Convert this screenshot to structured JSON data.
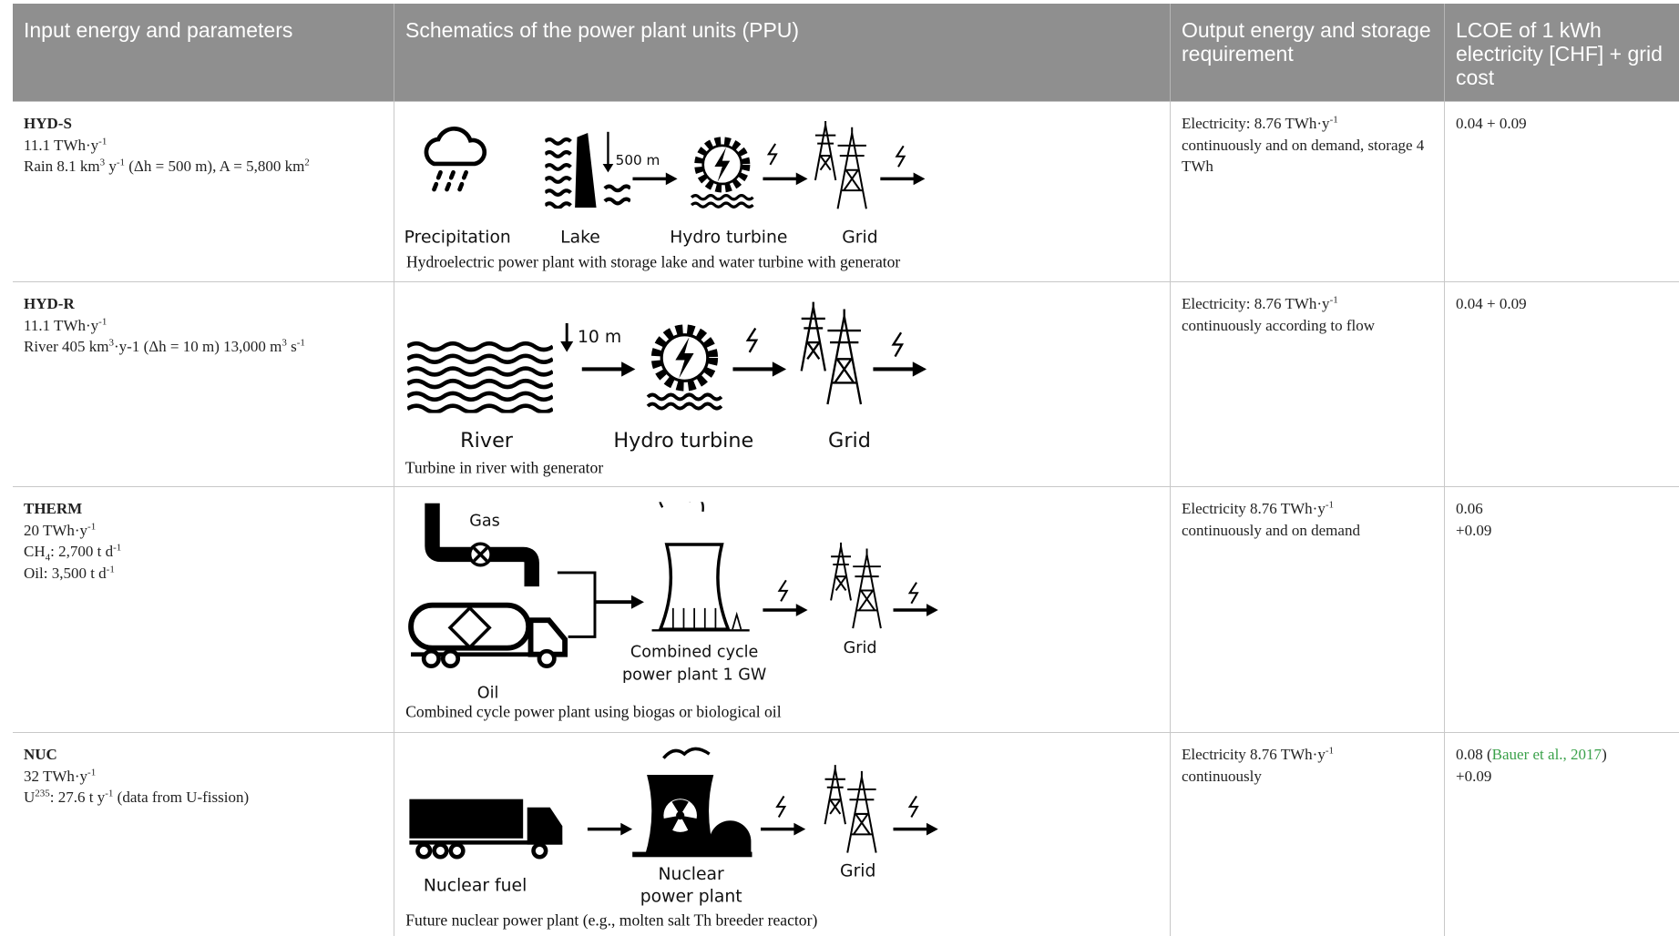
{
  "header": [
    "Input energy and parameters",
    "Schematics of the power plant units (PPU)",
    "Output energy and storage requirement",
    "LCOE of 1 kWh electricity [CHF] + grid cost"
  ],
  "rows": [
    {
      "name": "HYD-S",
      "input": [
        [
          {
            "t": "11.1 TWh·y"
          },
          {
            "sup": "-1"
          }
        ],
        [
          {
            "t": "Rain 8.1 km"
          },
          {
            "sup": "3"
          },
          {
            "t": " y"
          },
          {
            "sup": "-1"
          },
          {
            "t": " (Δh = 500 m), A = 5,800 km"
          },
          {
            "sup": "2"
          }
        ]
      ],
      "schematic": {
        "labels": [
          "Precipitation",
          "Lake",
          "Hydro turbine",
          "Grid"
        ],
        "drop": "500 m",
        "caption": "Hydroelectric power plant with storage lake and water turbine with generator"
      },
      "output": [
        [
          {
            "t": "Electricity: 8.76 TWh·y"
          },
          {
            "sup": "-1"
          }
        ],
        [
          {
            "t": "continuously and on demand, storage 4 TWh"
          }
        ]
      ],
      "lcoe": [
        [
          {
            "t": "0.04 + 0.09"
          }
        ]
      ]
    },
    {
      "name": "HYD-R",
      "input": [
        [
          {
            "t": "11.1 TWh·y"
          },
          {
            "sup": "-1"
          }
        ],
        [
          {
            "t": "River 405 km"
          },
          {
            "sup": "3"
          },
          {
            "t": "·y-1 (Δh = 10 m) 13,000 m"
          },
          {
            "sup": "3"
          },
          {
            "t": " s"
          },
          {
            "sup": "-1"
          }
        ]
      ],
      "schematic": {
        "labels": [
          "River",
          "Hydro turbine",
          "Grid"
        ],
        "drop": "10 m",
        "caption": "Turbine in river with generator"
      },
      "output": [
        [
          {
            "t": "Electricity: 8.76 TWh·y"
          },
          {
            "sup": "-1"
          }
        ],
        [
          {
            "t": "continuously according to flow"
          }
        ]
      ],
      "lcoe": [
        [
          {
            "t": "0.04 + 0.09"
          }
        ]
      ]
    },
    {
      "name": "THERM",
      "input": [
        [
          {
            "t": "20 TWh·y"
          },
          {
            "sup": "-1"
          }
        ],
        [
          {
            "t": "CH"
          },
          {
            "sub": "4"
          },
          {
            "t": ": 2,700 t d"
          },
          {
            "sup": "-1"
          }
        ],
        [
          {
            "t": "Oil: 3,500 t d"
          },
          {
            "sup": "-1"
          }
        ]
      ],
      "schematic": {
        "labels": [
          "Gas",
          "Oil",
          "Combined cycle",
          "power plant 1 GW",
          "Grid"
        ],
        "caption": "Combined cycle power plant using biogas or biological oil"
      },
      "output": [
        [
          {
            "t": "Electricity 8.76 TWh·y"
          },
          {
            "sup": "-1"
          }
        ],
        [
          {
            "t": "continuously and on demand"
          }
        ]
      ],
      "lcoe": [
        [
          {
            "t": "0.06"
          }
        ],
        [
          {
            "t": "+0.09"
          }
        ]
      ]
    },
    {
      "name": "NUC",
      "input": [
        [
          {
            "t": "32 TWh·y"
          },
          {
            "sup": "-1"
          }
        ],
        [
          {
            "t": "U"
          },
          {
            "sup": "235"
          },
          {
            "t": ": 27.6 t y"
          },
          {
            "sup": "-1"
          },
          {
            "t": " (data from U-fission)"
          }
        ]
      ],
      "schematic": {
        "labels": [
          "Nuclear fuel",
          "Nuclear",
          "power plant",
          "Grid"
        ],
        "caption": "Future nuclear power plant (e.g., molten salt Th breeder reactor)"
      },
      "output": [
        [
          {
            "t": "Electricity 8.76 TWh·y"
          },
          {
            "sup": "-1"
          }
        ],
        [
          {
            "t": "continuously"
          }
        ]
      ],
      "lcoe": [
        [
          {
            "t": "0.08 ("
          },
          {
            "link": "Bauer et al., 2017"
          },
          {
            "t": ")"
          }
        ],
        [
          {
            "t": "+0.09"
          }
        ]
      ]
    }
  ]
}
